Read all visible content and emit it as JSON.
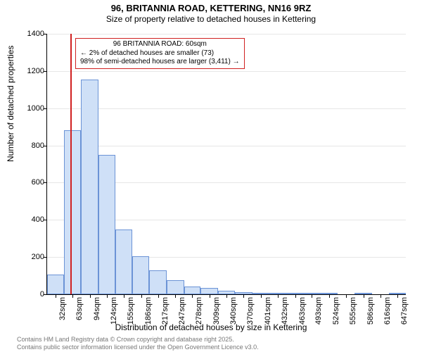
{
  "title": "96, BRITANNIA ROAD, KETTERING, NN16 9RZ",
  "subtitle": "Size of property relative to detached houses in Kettering",
  "title_fontsize": 13,
  "subtitle_fontsize": 12,
  "chart": {
    "type": "histogram",
    "background_color": "#ffffff",
    "grid_color": "#e6e6e6",
    "axis_color": "#000000",
    "bar_fill": "#cfe0f7",
    "bar_border": "#6b93d6",
    "bar_border_width": 1,
    "refline_color": "#d02020",
    "refline_x_sqm": 60,
    "annotation_border": "#d02020",
    "annotation_lines": [
      "96 BRITANNIA ROAD: 60sqm",
      "← 2% of detached houses are smaller (73)",
      "98% of semi-detached houses are larger (3,411) →"
    ],
    "annotation_fontsize": 10,
    "ylabel": "Number of detached properties",
    "xlabel": "Distribution of detached houses by size in Kettering",
    "axis_label_fontsize": 12,
    "tick_fontsize": 11,
    "ylim": [
      0,
      1400
    ],
    "ytick_step": 200,
    "x_min_sqm": 17,
    "x_max_sqm": 662,
    "xticks_sqm": [
      32,
      63,
      94,
      124,
      155,
      186,
      217,
      247,
      278,
      309,
      340,
      370,
      401,
      432,
      463,
      493,
      524,
      555,
      586,
      616,
      647
    ],
    "xtick_labels": [
      "32sqm",
      "63sqm",
      "94sqm",
      "124sqm",
      "155sqm",
      "186sqm",
      "217sqm",
      "247sqm",
      "278sqm",
      "309sqm",
      "340sqm",
      "370sqm",
      "401sqm",
      "432sqm",
      "463sqm",
      "493sqm",
      "524sqm",
      "555sqm",
      "586sqm",
      "616sqm",
      "647sqm"
    ],
    "bars": [
      {
        "x0": 17,
        "x1": 47,
        "value": 105
      },
      {
        "x0": 47,
        "x1": 78,
        "value": 880
      },
      {
        "x0": 78,
        "x1": 109,
        "value": 1155
      },
      {
        "x0": 109,
        "x1": 140,
        "value": 750
      },
      {
        "x0": 140,
        "x1": 170,
        "value": 350
      },
      {
        "x0": 170,
        "x1": 201,
        "value": 205
      },
      {
        "x0": 201,
        "x1": 232,
        "value": 130
      },
      {
        "x0": 232,
        "x1": 263,
        "value": 75
      },
      {
        "x0": 263,
        "x1": 293,
        "value": 42
      },
      {
        "x0": 293,
        "x1": 324,
        "value": 33
      },
      {
        "x0": 324,
        "x1": 355,
        "value": 20
      },
      {
        "x0": 355,
        "x1": 386,
        "value": 10
      },
      {
        "x0": 386,
        "x1": 416,
        "value": 3
      },
      {
        "x0": 416,
        "x1": 447,
        "value": 3
      },
      {
        "x0": 447,
        "x1": 478,
        "value": 2
      },
      {
        "x0": 478,
        "x1": 509,
        "value": 2
      },
      {
        "x0": 509,
        "x1": 539,
        "value": 1
      },
      {
        "x0": 539,
        "x1": 570,
        "value": 0
      },
      {
        "x0": 570,
        "x1": 601,
        "value": 1
      },
      {
        "x0": 601,
        "x1": 632,
        "value": 0
      },
      {
        "x0": 632,
        "x1": 662,
        "value": 1
      }
    ]
  },
  "footer": {
    "line1": "Contains HM Land Registry data © Crown copyright and database right 2025.",
    "line2": "Contains public sector information licensed under the Open Government Licence v3.0.",
    "fontsize": 9,
    "color": "#777777"
  }
}
